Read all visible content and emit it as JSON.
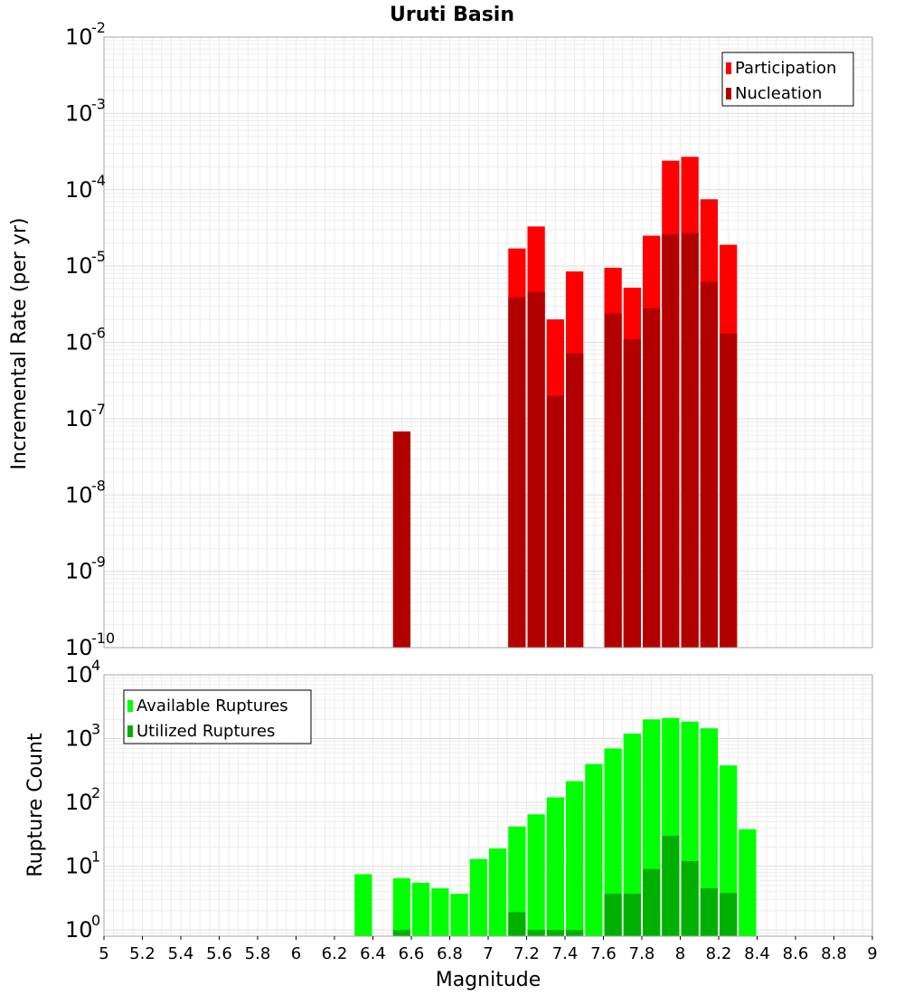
{
  "chart_data": [
    {
      "type": "bar",
      "id": "top",
      "title": "Uruti Basin",
      "xlabel": "",
      "ylabel": "Incremental Rate (per yr)",
      "yscale": "log",
      "ylim": [
        1e-10,
        0.01
      ],
      "xlim": [
        5,
        9
      ],
      "bin_width": 0.1,
      "legend_position": "top-right",
      "series": [
        {
          "name": "Participation",
          "color": "#ff0000",
          "x": [
            7.15,
            7.25,
            7.35,
            7.45,
            7.65,
            7.75,
            7.85,
            7.95,
            8.05,
            8.15,
            8.25
          ],
          "values": [
            1.7e-05,
            3.3e-05,
            2e-06,
            8.5e-06,
            9.5e-06,
            5.2e-06,
            2.5e-05,
            0.00024,
            0.00027,
            7.5e-05,
            1.9e-05
          ]
        },
        {
          "name": "Nucleation",
          "color": "#b20000",
          "x": [
            6.55,
            7.15,
            7.25,
            7.35,
            7.45,
            7.65,
            7.75,
            7.85,
            7.95,
            8.05,
            8.15,
            8.25
          ],
          "values": [
            6.8e-08,
            3.9e-06,
            4.6e-06,
            2e-07,
            7.2e-07,
            2.4e-06,
            1.1e-06,
            2.8e-06,
            2.6e-05,
            2.7e-05,
            6.2e-06,
            1.3e-06
          ]
        }
      ],
      "ytick_labels": [
        {
          "base": "10",
          "exp": "-10"
        },
        {
          "base": "10",
          "exp": "-9"
        },
        {
          "base": "10",
          "exp": "-8"
        },
        {
          "base": "10",
          "exp": "-7"
        },
        {
          "base": "10",
          "exp": "-6"
        },
        {
          "base": "10",
          "exp": "-5"
        },
        {
          "base": "10",
          "exp": "-4"
        },
        {
          "base": "10",
          "exp": "-3"
        },
        {
          "base": "10",
          "exp": "-2"
        }
      ]
    },
    {
      "type": "bar",
      "id": "bottom",
      "title": "",
      "xlabel": "Magnitude",
      "ylabel": "Rupture Count",
      "yscale": "log",
      "ylim": [
        0.8,
        10000
      ],
      "xlim": [
        5,
        9
      ],
      "bin_width": 0.1,
      "legend_position": "top-left",
      "series": [
        {
          "name": "Available Ruptures",
          "color": "#00ff00",
          "x": [
            6.35,
            6.55,
            6.65,
            6.75,
            6.85,
            6.95,
            7.05,
            7.15,
            7.25,
            7.35,
            7.45,
            7.55,
            7.65,
            7.75,
            7.85,
            7.95,
            8.05,
            8.15,
            8.25,
            8.35
          ],
          "values": [
            7.5,
            6.5,
            5.5,
            4.5,
            3.7,
            13,
            19,
            42,
            65,
            120,
            215,
            400,
            700,
            1200,
            2000,
            2100,
            1850,
            1450,
            380,
            38
          ]
        },
        {
          "name": "Utilized Ruptures",
          "color": "#00b000",
          "x": [
            6.55,
            7.15,
            7.25,
            7.35,
            7.45,
            7.65,
            7.75,
            7.85,
            7.95,
            8.05,
            8.15,
            8.25
          ],
          "values": [
            1,
            1.9,
            1,
            1,
            1,
            3.7,
            3.7,
            9,
            30,
            12,
            4.5,
            3.8
          ]
        }
      ],
      "ytick_labels": [
        {
          "base": "10",
          "exp": "0"
        },
        {
          "base": "10",
          "exp": "1"
        },
        {
          "base": "10",
          "exp": "2"
        },
        {
          "base": "10",
          "exp": "3"
        },
        {
          "base": "10",
          "exp": "4"
        }
      ],
      "xtick_labels": [
        "5",
        "5.2",
        "5.4",
        "5.6",
        "5.8",
        "6",
        "6.2",
        "6.4",
        "6.6",
        "6.8",
        "7",
        "7.2",
        "7.4",
        "7.6",
        "7.8",
        "8",
        "8.2",
        "8.4",
        "8.6",
        "8.8",
        "9"
      ]
    }
  ]
}
